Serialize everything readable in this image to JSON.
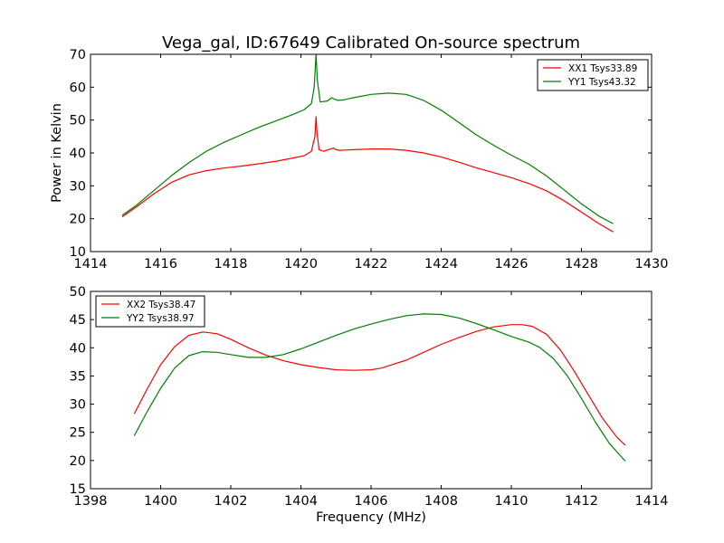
{
  "colors": {
    "red": "#ff0000",
    "green": "#007f00"
  },
  "chart_data": [
    {
      "type": "line",
      "title": "Vega_gal, ID:67649 Calibrated On-source spectrum",
      "xlabel": "",
      "ylabel": "Power in Kelvin",
      "xlim": [
        1414,
        1430
      ],
      "ylim": [
        10,
        70
      ],
      "xticks": [
        "1414",
        "1416",
        "1418",
        "1420",
        "1422",
        "1424",
        "1426",
        "1428",
        "1430"
      ],
      "yticks": [
        "10",
        "20",
        "30",
        "40",
        "50",
        "60",
        "70"
      ],
      "legend_position": "top-right",
      "grid": false,
      "series": [
        {
          "name": "XX1 Tsys33.89",
          "color": "#ff0000",
          "x": [
            1414.9,
            1415.3,
            1415.8,
            1416.3,
            1416.8,
            1417.3,
            1417.8,
            1418.3,
            1418.8,
            1419.3,
            1419.8,
            1420.1,
            1420.3,
            1420.4,
            1420.43,
            1420.46,
            1420.52,
            1420.65,
            1420.85,
            1420.93,
            1421.0,
            1421.1,
            1421.5,
            1422.0,
            1422.5,
            1423.0,
            1423.5,
            1424.0,
            1424.5,
            1425.0,
            1425.5,
            1426.0,
            1426.5,
            1427.0,
            1427.5,
            1428.0,
            1428.5,
            1428.9
          ],
          "y": [
            20.5,
            23.5,
            27.5,
            31.0,
            33.3,
            34.6,
            35.4,
            36.0,
            36.7,
            37.5,
            38.5,
            39.2,
            40.5,
            45.0,
            51.0,
            46.0,
            41.0,
            40.5,
            41.2,
            41.5,
            41.0,
            40.8,
            41.0,
            41.2,
            41.2,
            40.8,
            40.0,
            38.8,
            37.2,
            35.5,
            34.0,
            32.5,
            30.7,
            28.5,
            25.5,
            22.0,
            18.5,
            16.0
          ]
        },
        {
          "name": "YY1 Tsys43.32",
          "color": "#007f00",
          "x": [
            1414.9,
            1415.3,
            1415.8,
            1416.3,
            1416.8,
            1417.3,
            1417.8,
            1418.3,
            1418.8,
            1419.3,
            1419.8,
            1420.1,
            1420.3,
            1420.38,
            1420.43,
            1420.47,
            1420.55,
            1420.75,
            1420.88,
            1420.95,
            1421.05,
            1421.2,
            1421.5,
            1422.0,
            1422.5,
            1423.0,
            1423.5,
            1424.0,
            1424.5,
            1425.0,
            1425.5,
            1426.0,
            1426.5,
            1427.0,
            1427.5,
            1428.0,
            1428.5,
            1428.9
          ],
          "y": [
            21.0,
            24.0,
            28.5,
            33.0,
            37.0,
            40.5,
            43.2,
            45.5,
            47.8,
            49.8,
            51.8,
            53.2,
            55.0,
            60.0,
            70.0,
            62.0,
            55.5,
            55.8,
            56.8,
            56.4,
            56.0,
            56.1,
            56.8,
            57.8,
            58.2,
            57.8,
            56.0,
            53.0,
            49.3,
            45.5,
            42.3,
            39.3,
            36.6,
            33.0,
            28.8,
            24.5,
            20.8,
            18.5
          ]
        }
      ]
    },
    {
      "type": "line",
      "title": "",
      "xlabel": "Frequency (MHz)",
      "ylabel": "",
      "xlim": [
        1398,
        1414
      ],
      "ylim": [
        15,
        50
      ],
      "xticks": [
        "1398",
        "1400",
        "1402",
        "1404",
        "1406",
        "1408",
        "1410",
        "1412",
        "1414"
      ],
      "yticks": [
        "15",
        "20",
        "25",
        "30",
        "35",
        "40",
        "45",
        "50"
      ],
      "legend_position": "top-left",
      "grid": false,
      "series": [
        {
          "name": "XX2 Tsys38.47",
          "color": "#ff0000",
          "x": [
            1399.25,
            1399.6,
            1400.0,
            1400.4,
            1400.8,
            1401.2,
            1401.6,
            1402.0,
            1402.5,
            1403.0,
            1403.5,
            1404.0,
            1404.5,
            1405.0,
            1405.5,
            1406.0,
            1406.3,
            1406.5,
            1407.0,
            1407.5,
            1408.0,
            1408.5,
            1409.0,
            1409.5,
            1410.0,
            1410.3,
            1410.6,
            1411.0,
            1411.4,
            1411.8,
            1412.2,
            1412.6,
            1413.0,
            1413.25
          ],
          "y": [
            28.3,
            32.5,
            37.0,
            40.2,
            42.2,
            42.8,
            42.5,
            41.5,
            40.0,
            38.7,
            37.7,
            37.0,
            36.5,
            36.1,
            36.0,
            36.1,
            36.4,
            36.8,
            37.8,
            39.2,
            40.6,
            41.8,
            42.9,
            43.7,
            44.1,
            44.1,
            43.8,
            42.4,
            39.6,
            35.8,
            31.6,
            27.5,
            24.2,
            22.7
          ]
        },
        {
          "name": "YY2 Tsys38.97",
          "color": "#007f00",
          "x": [
            1399.25,
            1399.6,
            1400.0,
            1400.4,
            1400.8,
            1401.2,
            1401.6,
            1402.0,
            1402.5,
            1403.0,
            1403.5,
            1404.0,
            1404.5,
            1405.0,
            1405.5,
            1406.0,
            1406.5,
            1407.0,
            1407.5,
            1408.0,
            1408.5,
            1409.0,
            1409.5,
            1410.0,
            1410.5,
            1410.8,
            1411.2,
            1411.6,
            1412.0,
            1412.4,
            1412.8,
            1413.25
          ],
          "y": [
            24.4,
            28.5,
            32.8,
            36.4,
            38.6,
            39.3,
            39.2,
            38.8,
            38.3,
            38.3,
            38.8,
            39.8,
            41.0,
            42.2,
            43.3,
            44.2,
            45.0,
            45.7,
            46.0,
            45.9,
            45.3,
            44.3,
            43.2,
            42.0,
            41.0,
            40.1,
            38.1,
            35.0,
            31.0,
            26.8,
            23.0,
            19.9
          ]
        }
      ]
    }
  ]
}
